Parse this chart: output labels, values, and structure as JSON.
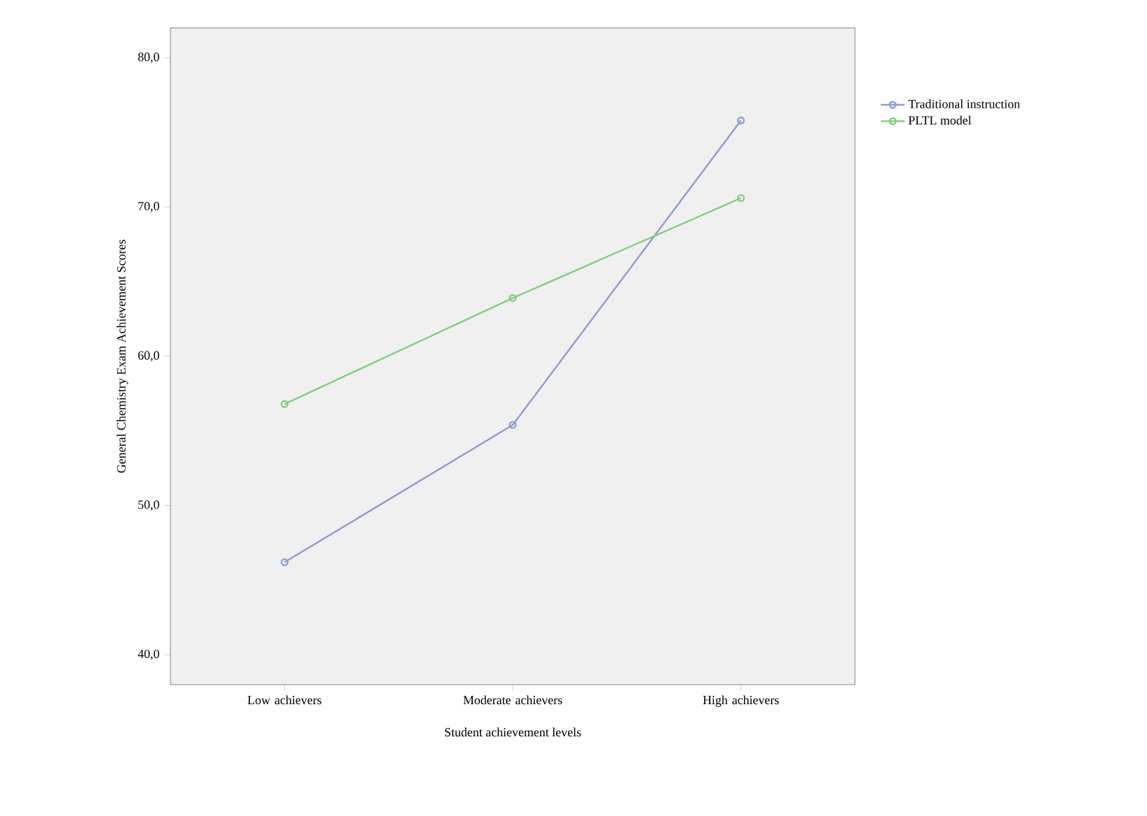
{
  "chart_data": {
    "type": "line",
    "xlabel": "Student achievement levels",
    "ylabel": "General Chemistry Exam Achievement Scores",
    "categories": [
      "Low achievers",
      "Moderate achievers",
      "High achievers"
    ],
    "series": [
      {
        "name": "Traditional instruction",
        "color": "#8f9ad3",
        "values": [
          46.2,
          55.4,
          75.8
        ]
      },
      {
        "name": "PLTL model",
        "color": "#7ed07e",
        "values": [
          56.8,
          63.9,
          70.6
        ]
      }
    ],
    "ylim": [
      38,
      82
    ],
    "yticks": [
      {
        "value": 40,
        "label": "40,0"
      },
      {
        "value": 50,
        "label": "50,0"
      },
      {
        "value": 60,
        "label": "60,0"
      },
      {
        "value": 70,
        "label": "70,0"
      },
      {
        "value": 80,
        "label": "80,0"
      }
    ],
    "grid": false,
    "legend": "right",
    "marker": "circle",
    "line_style": "solid"
  }
}
